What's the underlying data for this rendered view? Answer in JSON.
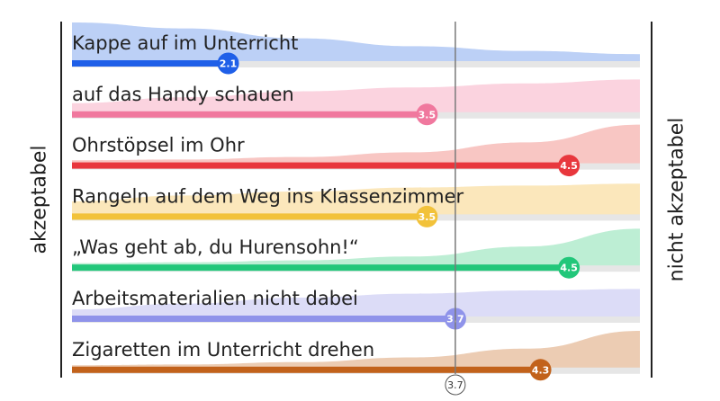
{
  "chart_data": {
    "type": "bar",
    "axis": {
      "left_label": "akzeptabel",
      "right_label": "nicht akzeptabel",
      "xlim": [
        1,
        5
      ]
    },
    "reference_line": {
      "value": 3.7,
      "label": "3.7"
    },
    "categories": [
      "Kappe auf im Unterricht",
      "auf das Handy schauen",
      "Ohrstöpsel im Ohr",
      "Rangeln auf dem Weg ins Klassenzimmer",
      "„Was geht ab, du Hurensohn!“",
      "Arbeitsmaterialien nicht dabei",
      "Zigaretten im Unterricht drehen"
    ],
    "values": [
      2.1,
      3.5,
      4.5,
      3.5,
      4.5,
      3.7,
      4.3
    ],
    "value_labels": [
      "2.1",
      "3.5",
      "4.5",
      "3.5",
      "4.5",
      "3.7",
      "4.3"
    ],
    "colors": [
      "#1f5fe8",
      "#f0789e",
      "#e8373d",
      "#f2c23a",
      "#22c77a",
      "#8f93ea",
      "#c2621b"
    ],
    "area_colors": [
      "#bcd0f6",
      "#fbd3df",
      "#f8c6c3",
      "#fbe7bb",
      "#bdeed4",
      "#dcdcf7",
      "#ecccb3"
    ],
    "distribution": [
      [
        1.0,
        0.85,
        0.6,
        0.4,
        0.28,
        0.2
      ],
      [
        0.25,
        0.4,
        0.55,
        0.65,
        0.75,
        0.85
      ],
      [
        0.1,
        0.12,
        0.18,
        0.3,
        0.55,
        1.0
      ],
      [
        0.35,
        0.5,
        0.6,
        0.7,
        0.75,
        0.8
      ],
      [
        0.08,
        0.1,
        0.15,
        0.25,
        0.5,
        0.95
      ],
      [
        0.2,
        0.35,
        0.5,
        0.6,
        0.68,
        0.72
      ],
      [
        0.08,
        0.1,
        0.16,
        0.28,
        0.5,
        0.95
      ]
    ]
  }
}
